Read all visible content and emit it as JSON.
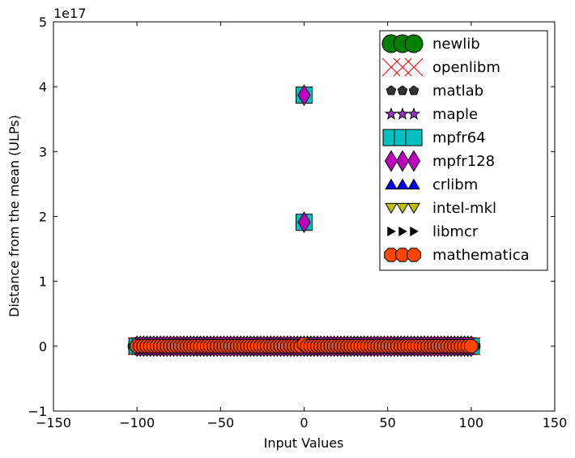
{
  "chart_data": {
    "type": "scatter",
    "title": "",
    "xlabel": "Input Values",
    "ylabel": "Distance from the mean (ULPs)",
    "offset_text": "1e17",
    "xlim": [
      -150,
      150
    ],
    "ylim": [
      -1,
      5
    ],
    "xticks": [
      -150,
      -100,
      -50,
      0,
      50,
      100,
      150
    ],
    "xtick_labels": [
      "−150",
      "−100",
      "−50",
      "0",
      "50",
      "100",
      "150"
    ],
    "yticks": [
      -1,
      0,
      1,
      2,
      3,
      4,
      5
    ],
    "ytick_labels": [
      "−1",
      "0",
      "1",
      "2",
      "3",
      "4",
      "5"
    ],
    "grid": false,
    "legend_position": "top-right",
    "x_points": {
      "start": -100,
      "end": 100,
      "step": 2
    },
    "series": [
      {
        "name": "newlib",
        "marker": "circle",
        "color": "#008000",
        "size": 11,
        "outliers": []
      },
      {
        "name": "openlibm",
        "marker": "x",
        "color": "#ff0000",
        "size": 11,
        "outliers": []
      },
      {
        "name": "matlab",
        "marker": "pentagon",
        "color": "#333333",
        "size": 6,
        "outliers": []
      },
      {
        "name": "maple",
        "marker": "star",
        "color": "#9933cc",
        "size": 7,
        "outliers": []
      },
      {
        "name": "mpfr64",
        "marker": "square",
        "color": "#00bfbf",
        "size": 10,
        "outliers": [
          {
            "x": 0,
            "y": 3.87
          },
          {
            "x": 0,
            "y": 1.91
          }
        ]
      },
      {
        "name": "mpfr128",
        "marker": "diamond",
        "color": "#bf00bf",
        "size": 10,
        "outliers": [
          {
            "x": 0,
            "y": 3.87
          },
          {
            "x": 0,
            "y": 1.91
          }
        ]
      },
      {
        "name": "crlibm",
        "marker": "triangle-up",
        "color": "#0000ff",
        "size": 8,
        "outliers": []
      },
      {
        "name": "intel-mkl",
        "marker": "triangle-down",
        "color": "#bfbf00",
        "size": 8,
        "outliers": []
      },
      {
        "name": "libmcr",
        "marker": "triangle-right",
        "color": "#000000",
        "size": 6,
        "outliers": []
      },
      {
        "name": "mathematica",
        "marker": "octagon",
        "color": "#ff4500",
        "size": 9,
        "outliers": [
          {
            "x": 0,
            "y": 0.03
          }
        ]
      }
    ]
  }
}
